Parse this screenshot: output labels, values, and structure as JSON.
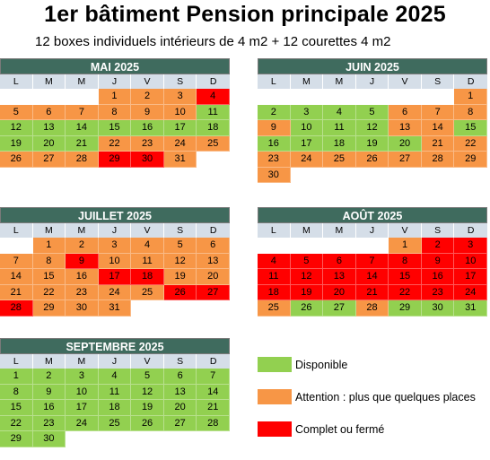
{
  "title": "1er bâtiment Pension principale 2025",
  "subtitle": "12 boxes individuels intérieurs de  4 m2 + 12 courettes 4 m2",
  "dow": [
    "L",
    "M",
    "M",
    "J",
    "V",
    "S",
    "D"
  ],
  "colors": {
    "g": "#92d050",
    "o": "#f79646",
    "r": "#ff0000",
    "w": "#ffffff"
  },
  "months": [
    {
      "name": "MAI 2025",
      "cells": [
        [
          "",
          "w"
        ],
        [
          "",
          "w"
        ],
        [
          "",
          "w"
        ],
        [
          "1",
          "o"
        ],
        [
          "2",
          "o"
        ],
        [
          "3",
          "o"
        ],
        [
          "4",
          "r"
        ],
        [
          "5",
          "o"
        ],
        [
          "6",
          "o"
        ],
        [
          "7",
          "o"
        ],
        [
          "8",
          "o"
        ],
        [
          "9",
          "o"
        ],
        [
          "10",
          "o"
        ],
        [
          "11",
          "g"
        ],
        [
          "12",
          "g"
        ],
        [
          "13",
          "g"
        ],
        [
          "14",
          "g"
        ],
        [
          "15",
          "g"
        ],
        [
          "16",
          "g"
        ],
        [
          "17",
          "g"
        ],
        [
          "18",
          "g"
        ],
        [
          "19",
          "g"
        ],
        [
          "20",
          "g"
        ],
        [
          "21",
          "g"
        ],
        [
          "22",
          "o"
        ],
        [
          "23",
          "o"
        ],
        [
          "24",
          "o"
        ],
        [
          "25",
          "o"
        ],
        [
          "26",
          "o"
        ],
        [
          "27",
          "o"
        ],
        [
          "28",
          "o"
        ],
        [
          "29",
          "r"
        ],
        [
          "30",
          "r"
        ],
        [
          "31",
          "o"
        ],
        [
          "",
          "w"
        ]
      ]
    },
    {
      "name": "JUIN 2025",
      "cells": [
        [
          "",
          "w"
        ],
        [
          "",
          "w"
        ],
        [
          "",
          "w"
        ],
        [
          "",
          "w"
        ],
        [
          "",
          "w"
        ],
        [
          "",
          "w"
        ],
        [
          "1",
          "o"
        ],
        [
          "2",
          "g"
        ],
        [
          "3",
          "g"
        ],
        [
          "4",
          "g"
        ],
        [
          "5",
          "g"
        ],
        [
          "6",
          "o"
        ],
        [
          "7",
          "o"
        ],
        [
          "8",
          "o"
        ],
        [
          "9",
          "o"
        ],
        [
          "10",
          "g"
        ],
        [
          "11",
          "g"
        ],
        [
          "12",
          "g"
        ],
        [
          "13",
          "o"
        ],
        [
          "14",
          "o"
        ],
        [
          "15",
          "g"
        ],
        [
          "16",
          "g"
        ],
        [
          "17",
          "g"
        ],
        [
          "18",
          "g"
        ],
        [
          "19",
          "g"
        ],
        [
          "20",
          "g"
        ],
        [
          "21",
          "o"
        ],
        [
          "22",
          "o"
        ],
        [
          "23",
          "o"
        ],
        [
          "24",
          "o"
        ],
        [
          "25",
          "o"
        ],
        [
          "26",
          "o"
        ],
        [
          "27",
          "o"
        ],
        [
          "28",
          "o"
        ],
        [
          "29",
          "o"
        ],
        [
          "30",
          "o"
        ],
        [
          "",
          "w"
        ],
        [
          "",
          "w"
        ],
        [
          "",
          "w"
        ],
        [
          "",
          "w"
        ],
        [
          "",
          "w"
        ],
        [
          "",
          "w"
        ]
      ]
    },
    {
      "name": "JUILLET 2025",
      "cells": [
        [
          "",
          "w"
        ],
        [
          "1",
          "o"
        ],
        [
          "2",
          "o"
        ],
        [
          "3",
          "o"
        ],
        [
          "4",
          "o"
        ],
        [
          "5",
          "o"
        ],
        [
          "6",
          "o"
        ],
        [
          "7",
          "o"
        ],
        [
          "8",
          "o"
        ],
        [
          "9",
          "r"
        ],
        [
          "10",
          "o"
        ],
        [
          "11",
          "o"
        ],
        [
          "12",
          "o"
        ],
        [
          "13",
          "o"
        ],
        [
          "14",
          "o"
        ],
        [
          "15",
          "o"
        ],
        [
          "16",
          "o"
        ],
        [
          "17",
          "r"
        ],
        [
          "18",
          "r"
        ],
        [
          "19",
          "o"
        ],
        [
          "20",
          "o"
        ],
        [
          "21",
          "o"
        ],
        [
          "22",
          "o"
        ],
        [
          "23",
          "o"
        ],
        [
          "24",
          "o"
        ],
        [
          "25",
          "o"
        ],
        [
          "26",
          "r"
        ],
        [
          "27",
          "r"
        ],
        [
          "28",
          "r"
        ],
        [
          "29",
          "o"
        ],
        [
          "30",
          "o"
        ],
        [
          "31",
          "o"
        ],
        [
          "",
          "w"
        ],
        [
          "",
          "w"
        ],
        [
          "",
          "w"
        ]
      ]
    },
    {
      "name": "AOÛT 2025",
      "cells": [
        [
          "",
          "w"
        ],
        [
          "",
          "w"
        ],
        [
          "",
          "w"
        ],
        [
          "",
          "w"
        ],
        [
          "1",
          "o"
        ],
        [
          "2",
          "r"
        ],
        [
          "3",
          "r"
        ],
        [
          "4",
          "r"
        ],
        [
          "5",
          "r"
        ],
        [
          "6",
          "r"
        ],
        [
          "7",
          "r"
        ],
        [
          "8",
          "r"
        ],
        [
          "9",
          "r"
        ],
        [
          "10",
          "r"
        ],
        [
          "11",
          "r"
        ],
        [
          "12",
          "r"
        ],
        [
          "13",
          "r"
        ],
        [
          "14",
          "r"
        ],
        [
          "15",
          "r"
        ],
        [
          "16",
          "r"
        ],
        [
          "17",
          "r"
        ],
        [
          "18",
          "r"
        ],
        [
          "19",
          "r"
        ],
        [
          "20",
          "r"
        ],
        [
          "21",
          "r"
        ],
        [
          "22",
          "r"
        ],
        [
          "23",
          "r"
        ],
        [
          "24",
          "r"
        ],
        [
          "25",
          "o"
        ],
        [
          "26",
          "g"
        ],
        [
          "27",
          "g"
        ],
        [
          "28",
          "o"
        ],
        [
          "29",
          "g"
        ],
        [
          "30",
          "g"
        ],
        [
          "31",
          "g"
        ]
      ]
    },
    {
      "name": "SEPTEMBRE 2025",
      "cells": [
        [
          "1",
          "g"
        ],
        [
          "2",
          "g"
        ],
        [
          "3",
          "g"
        ],
        [
          "4",
          "g"
        ],
        [
          "5",
          "g"
        ],
        [
          "6",
          "g"
        ],
        [
          "7",
          "g"
        ],
        [
          "8",
          "g"
        ],
        [
          "9",
          "g"
        ],
        [
          "10",
          "g"
        ],
        [
          "11",
          "g"
        ],
        [
          "12",
          "g"
        ],
        [
          "13",
          "g"
        ],
        [
          "14",
          "g"
        ],
        [
          "15",
          "g"
        ],
        [
          "16",
          "g"
        ],
        [
          "17",
          "g"
        ],
        [
          "18",
          "g"
        ],
        [
          "19",
          "g"
        ],
        [
          "20",
          "g"
        ],
        [
          "21",
          "g"
        ],
        [
          "22",
          "g"
        ],
        [
          "23",
          "g"
        ],
        [
          "24",
          "g"
        ],
        [
          "25",
          "g"
        ],
        [
          "26",
          "g"
        ],
        [
          "27",
          "g"
        ],
        [
          "28",
          "g"
        ],
        [
          "29",
          "g"
        ],
        [
          "30",
          "g"
        ],
        [
          "",
          "w"
        ],
        [
          "",
          "w"
        ],
        [
          "",
          "w"
        ],
        [
          "",
          "w"
        ],
        [
          "",
          "w"
        ]
      ]
    }
  ],
  "legend": [
    {
      "label": "Disponible",
      "color": "g"
    },
    {
      "label": "Attention : plus que quelques places",
      "color": "o"
    },
    {
      "label": "Complet ou fermé",
      "color": "r"
    }
  ]
}
